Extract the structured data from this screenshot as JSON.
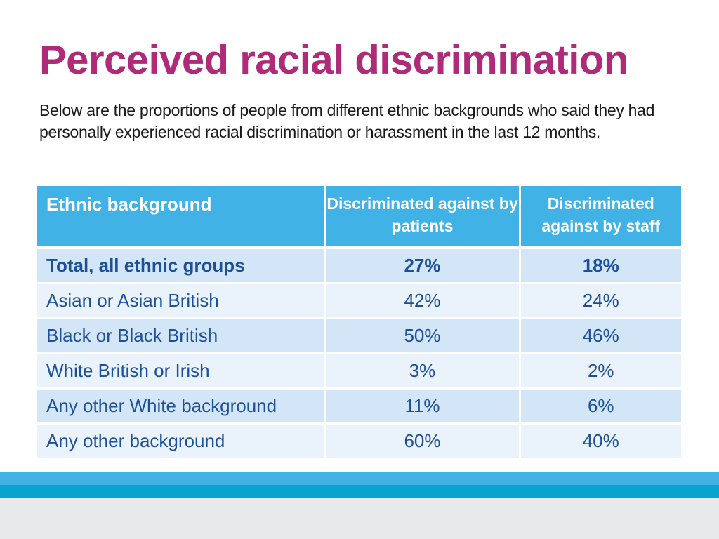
{
  "slide": {
    "title": "Perceived racial discrimination",
    "intro": "Below are the proportions of people from different ethnic backgrounds who said they had personally experienced racial discrimination or harassment in the last 12 months."
  },
  "table": {
    "headers": [
      "Ethnic background",
      "Discriminated against by patients",
      "Discriminated against by staff"
    ],
    "rows": [
      {
        "label": "Total, all ethnic groups",
        "patients": "27%",
        "staff": "18%"
      },
      {
        "label": "Asian or Asian British",
        "patients": "42%",
        "staff": "24%"
      },
      {
        "label": "Black or Black British",
        "patients": "50%",
        "staff": "46%"
      },
      {
        "label": "White British or Irish",
        "patients": "3%",
        "staff": "2%"
      },
      {
        "label": "Any other White background",
        "patients": "11%",
        "staff": "6%"
      },
      {
        "label": "Any other background",
        "patients": "60%",
        "staff": "40%"
      }
    ]
  },
  "colors": {
    "title": "#b02a7a",
    "header_bg": "#40b2e6",
    "row_odd": "#d2e6f7",
    "row_even": "#eaf3fb",
    "body_text": "#1d4f9a",
    "band_light": "#40b2e6",
    "band_dark": "#0aa3cf",
    "footer_bg": "#e8e9eb"
  }
}
